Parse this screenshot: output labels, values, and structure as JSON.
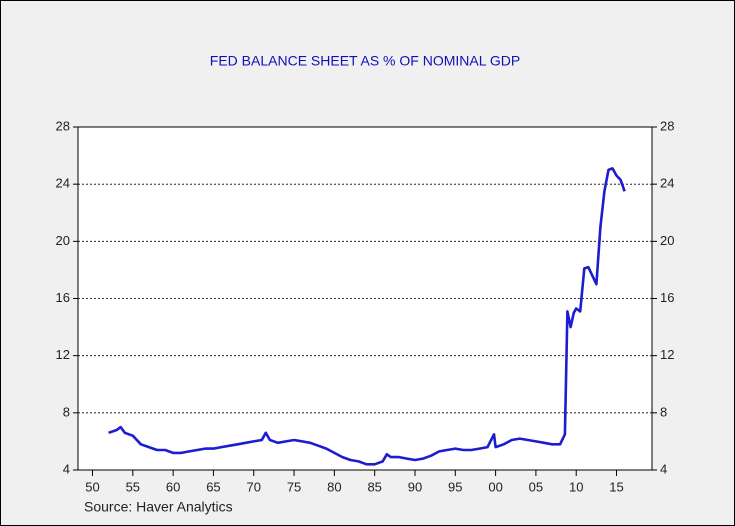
{
  "chart_data": {
    "type": "line",
    "title": "FED BALANCE SHEET AS % OF NOMINAL GDP",
    "source": "Source: Haver Analytics",
    "x": [
      1952,
      1953,
      1953.5,
      1954,
      1955,
      1956,
      1957,
      1958,
      1959,
      1960,
      1961,
      1962,
      1963,
      1964,
      1965,
      1966,
      1967,
      1968,
      1969,
      1970,
      1971,
      1971.5,
      1972,
      1973,
      1974,
      1975,
      1976,
      1977,
      1978,
      1979,
      1980,
      1981,
      1982,
      1983,
      1984,
      1985,
      1986,
      1986.5,
      1987,
      1988,
      1989,
      1990,
      1991,
      1992,
      1993,
      1994,
      1995,
      1996,
      1997,
      1998,
      1999,
      1999.8,
      2000,
      2001,
      2002,
      2003,
      2004,
      2005,
      2006,
      2007,
      2008,
      2008.6,
      2008.9,
      2009.3,
      2009.7,
      2010,
      2010.5,
      2011,
      2011.5,
      2012,
      2012.5,
      2013,
      2013.5,
      2014,
      2014.5,
      2015,
      2015.5,
      2016
    ],
    "series": [
      {
        "name": "Fed balance sheet % of nominal GDP",
        "color": "#1c1cd0",
        "values": [
          6.6,
          6.8,
          7.0,
          6.6,
          6.4,
          5.8,
          5.6,
          5.4,
          5.4,
          5.2,
          5.2,
          5.3,
          5.4,
          5.5,
          5.5,
          5.6,
          5.7,
          5.8,
          5.9,
          6.0,
          6.1,
          6.6,
          6.1,
          5.9,
          6.0,
          6.1,
          6.0,
          5.9,
          5.7,
          5.5,
          5.2,
          4.9,
          4.7,
          4.6,
          4.4,
          4.4,
          4.6,
          5.1,
          4.9,
          4.9,
          4.8,
          4.7,
          4.8,
          5.0,
          5.3,
          5.4,
          5.5,
          5.4,
          5.4,
          5.5,
          5.6,
          6.5,
          5.6,
          5.8,
          6.1,
          6.2,
          6.1,
          6.0,
          5.9,
          5.8,
          5.8,
          6.5,
          15.1,
          14.0,
          15.0,
          15.3,
          15.1,
          18.1,
          18.2,
          17.6,
          17.0,
          21.0,
          23.5,
          25.0,
          25.1,
          24.6,
          24.3,
          23.5
        ]
      }
    ],
    "xlim": [
      1948.2,
      2019.4
    ],
    "xticks": [
      {
        "value": 1950,
        "label": "50"
      },
      {
        "value": 1955,
        "label": "55"
      },
      {
        "value": 1960,
        "label": "60"
      },
      {
        "value": 1965,
        "label": "65"
      },
      {
        "value": 1970,
        "label": "70"
      },
      {
        "value": 1975,
        "label": "75"
      },
      {
        "value": 1980,
        "label": "80"
      },
      {
        "value": 1985,
        "label": "85"
      },
      {
        "value": 1990,
        "label": "90"
      },
      {
        "value": 1995,
        "label": "95"
      },
      {
        "value": 2000,
        "label": "00"
      },
      {
        "value": 2005,
        "label": "05"
      },
      {
        "value": 2010,
        "label": "10"
      },
      {
        "value": 2015,
        "label": "15"
      }
    ],
    "ylim": [
      4,
      28
    ],
    "yticks": [
      4,
      8,
      12,
      16,
      20,
      24,
      28
    ],
    "grid": true
  }
}
